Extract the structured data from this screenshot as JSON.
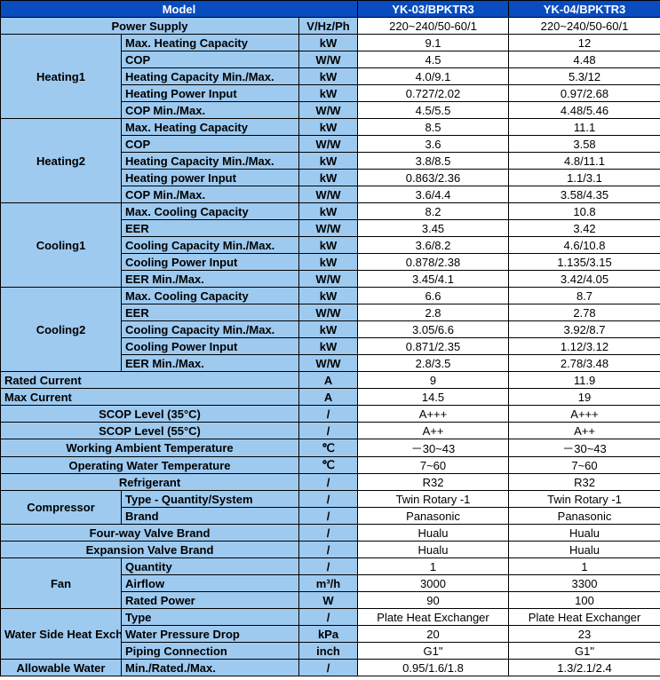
{
  "header": {
    "model": "Model",
    "m1": "YK-03/BPKTR3",
    "m2": "YK-04/BPKTR3"
  },
  "powerSupply": {
    "label": "Power Supply",
    "unit": "V/Hz/Ph",
    "v1": "220~240/50-60/1",
    "v2": "220~240/50-60/1"
  },
  "groups": [
    {
      "name": "Heating1",
      "rows": [
        {
          "p": "Max. Heating Capacity",
          "u": "kW",
          "v1": "9.1",
          "v2": "12"
        },
        {
          "p": "COP",
          "u": "W/W",
          "v1": "4.5",
          "v2": "4.48"
        },
        {
          "p": "Heating Capacity Min./Max.",
          "u": "kW",
          "v1": "4.0/9.1",
          "v2": "5.3/12"
        },
        {
          "p": "Heating Power Input",
          "u": "kW",
          "v1": "0.727/2.02",
          "v2": "0.97/2.68"
        },
        {
          "p": "COP Min./Max.",
          "u": "W/W",
          "v1": "4.5/5.5",
          "v2": "4.48/5.46"
        }
      ]
    },
    {
      "name": "Heating2",
      "rows": [
        {
          "p": "Max. Heating Capacity",
          "u": "kW",
          "v1": "8.5",
          "v2": "11.1"
        },
        {
          "p": "COP",
          "u": "W/W",
          "v1": "3.6",
          "v2": "3.58"
        },
        {
          "p": "Heating Capacity Min./Max.",
          "u": "kW",
          "v1": "3.8/8.5",
          "v2": "4.8/11.1"
        },
        {
          "p": "Heating power Input",
          "u": "kW",
          "v1": "0.863/2.36",
          "v2": "1.1/3.1"
        },
        {
          "p": "COP Min./Max.",
          "u": "W/W",
          "v1": "3.6/4.4",
          "v2": "3.58/4.35"
        }
      ]
    },
    {
      "name": "Cooling1",
      "rows": [
        {
          "p": "Max. Cooling Capacity",
          "u": "kW",
          "v1": "8.2",
          "v2": "10.8"
        },
        {
          "p": "EER",
          "u": "W/W",
          "v1": "3.45",
          "v2": "3.42"
        },
        {
          "p": "Cooling Capacity Min./Max.",
          "u": "kW",
          "v1": "3.6/8.2",
          "v2": "4.6/10.8"
        },
        {
          "p": "Cooling Power Input",
          "u": "kW",
          "v1": "0.878/2.38",
          "v2": "1.135/3.15"
        },
        {
          "p": "EER Min./Max.",
          "u": "W/W",
          "v1": "3.45/4.1",
          "v2": "3.42/4.05"
        }
      ]
    },
    {
      "name": "Cooling2",
      "rows": [
        {
          "p": "Max. Cooling Capacity",
          "u": "kW",
          "v1": "6.6",
          "v2": "8.7"
        },
        {
          "p": "EER",
          "u": "W/W",
          "v1": "2.8",
          "v2": "2.78"
        },
        {
          "p": "Cooling Capacity Min./Max.",
          "u": "kW",
          "v1": "3.05/6.6",
          "v2": "3.92/8.7"
        },
        {
          "p": "Cooling Power Input",
          "u": "kW",
          "v1": "0.871/2.35",
          "v2": "1.12/3.12"
        },
        {
          "p": "EER Min./Max.",
          "u": "W/W",
          "v1": "2.8/3.5",
          "v2": "2.78/3.48"
        }
      ]
    }
  ],
  "singles": [
    {
      "label": "Rated Current",
      "align": "left",
      "u": "A",
      "v1": "9",
      "v2": "11.9"
    },
    {
      "label": "Max Current",
      "align": "left",
      "u": "A",
      "v1": "14.5",
      "v2": "19"
    },
    {
      "label": "SCOP Level (35°C)",
      "align": "center",
      "u": "/",
      "v1": "A+++",
      "v2": "A+++"
    },
    {
      "label": "SCOP Level (55°C)",
      "align": "center",
      "u": "/",
      "v1": "A++",
      "v2": "A++"
    },
    {
      "label": "Working Ambient Temperature",
      "align": "center",
      "u": "℃",
      "v1": "－30~43",
      "v2": "－30~43"
    },
    {
      "label": "Operating Water Temperature",
      "align": "center",
      "u": "℃",
      "v1": "7~60",
      "v2": "7~60"
    },
    {
      "label": "Refrigerant",
      "align": "center",
      "u": "/",
      "v1": "R32",
      "v2": "R32"
    }
  ],
  "compressor": {
    "name": "Compressor",
    "rows": [
      {
        "p": "Type - Quantity/System",
        "u": "/",
        "v1": "Twin Rotary -1",
        "v2": "Twin Rotary -1"
      },
      {
        "p": "Brand",
        "u": "/",
        "v1": "Panasonic",
        "v2": "Panasonic"
      }
    ]
  },
  "postCompSingles": [
    {
      "label": "Four-way Valve Brand",
      "u": "/",
      "v1": "Hualu",
      "v2": "Hualu"
    },
    {
      "label": "Expansion Valve Brand",
      "u": "/",
      "v1": "Hualu",
      "v2": "Hualu"
    }
  ],
  "fan": {
    "name": "Fan",
    "rows": [
      {
        "p": "Quantity",
        "u": "/",
        "v1": "1",
        "v2": "1"
      },
      {
        "p": "Airflow",
        "u": "m³/h",
        "v1": "3000",
        "v2": "3300"
      },
      {
        "p": "Rated Power",
        "u": "W",
        "v1": "90",
        "v2": "100"
      }
    ]
  },
  "whe": {
    "name": "Water Side Heat Exchanger",
    "rows": [
      {
        "p": "Type",
        "u": "/",
        "v1": "Plate Heat Exchanger",
        "v2": "Plate Heat Exchanger"
      },
      {
        "p": "Water Pressure Drop",
        "u": "kPa",
        "v1": "20",
        "v2": "23"
      },
      {
        "p": "Piping Connection",
        "u": "inch",
        "v1": "G1\"",
        "v2": "G1\""
      }
    ]
  },
  "allowWater": {
    "name": "Allowable Water",
    "rows": [
      {
        "p": "Min./Rated./Max.",
        "u": "/",
        "v1": "0.95/1.6/1.8",
        "v2": "1.3/2.1/2.4"
      }
    ]
  }
}
